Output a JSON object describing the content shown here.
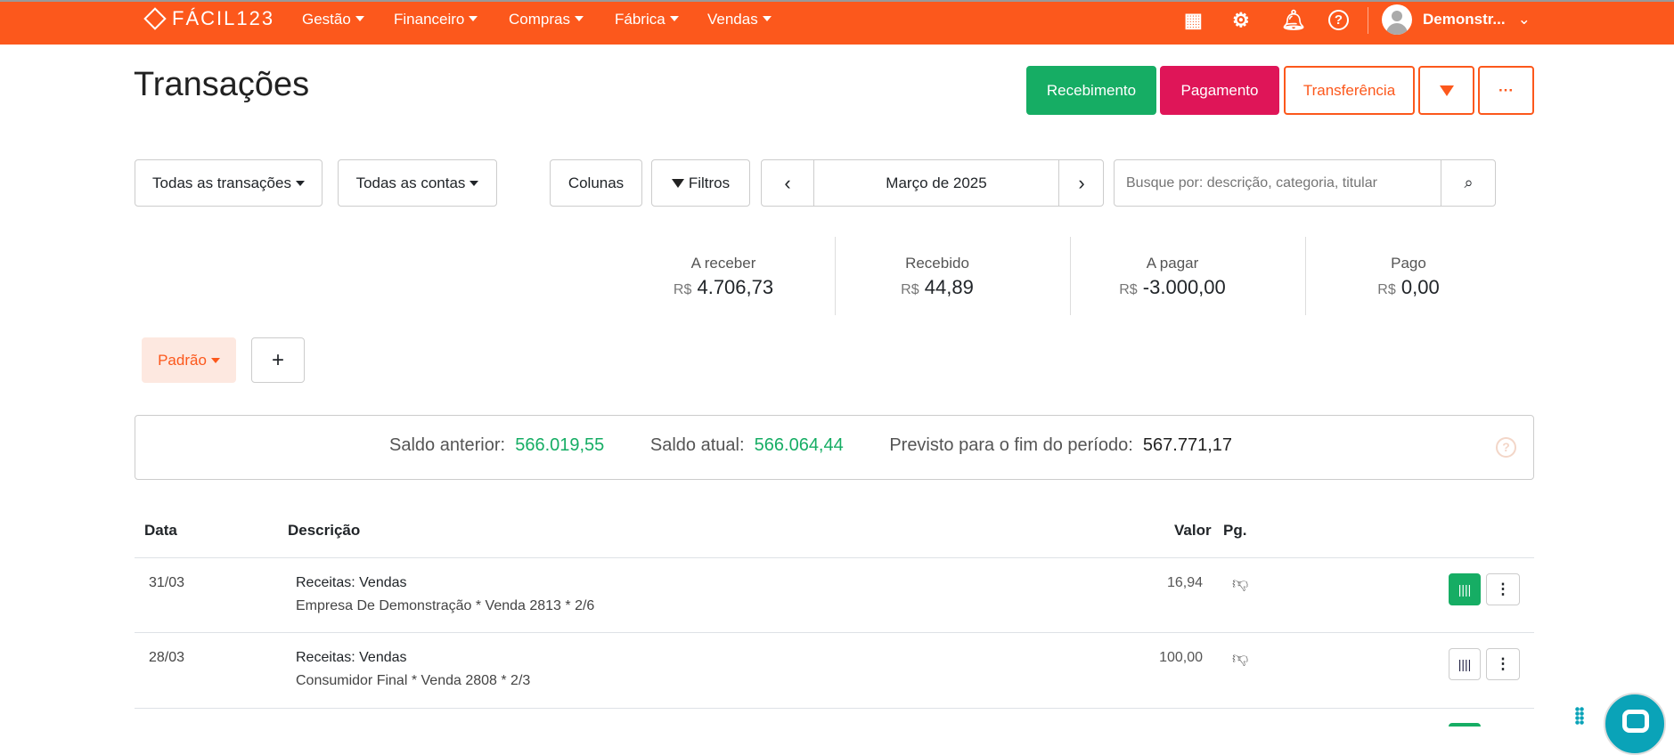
{
  "nav": {
    "brand": "FÁCIL123",
    "menus": [
      "Gestão",
      "Financeiro",
      "Compras",
      "Fábrica",
      "Vendas"
    ],
    "user": "Demonstr...",
    "icons": [
      "apps-grid-icon",
      "gear-icon",
      "bell-icon",
      "help-icon"
    ]
  },
  "page": {
    "title": "Transações"
  },
  "actions": {
    "receive": "Recebimento",
    "pay": "Pagamento",
    "transfer": "Transferência",
    "more": "···"
  },
  "filters": {
    "transactions": "Todas as transações",
    "accounts": "Todas as contas",
    "columns": "Colunas",
    "filters": "Filtros",
    "period": "Março de 2025",
    "search_placeholder": "Busque por: descrição, categoria, titular"
  },
  "summary": [
    {
      "label": "A receber",
      "currency": "R$",
      "value": "4.706,73"
    },
    {
      "label": "Recebido",
      "currency": "R$",
      "value": "44,89"
    },
    {
      "label": "A pagar",
      "currency": "R$",
      "value": "-3.000,00"
    },
    {
      "label": "Pago",
      "currency": "R$",
      "value": "0,00"
    }
  ],
  "view": {
    "name": "Padrão",
    "add": "+"
  },
  "balance": {
    "prev_label": "Saldo anterior:",
    "prev": "566.019,55",
    "curr_label": "Saldo atual:",
    "curr": "566.064,44",
    "forecast_label": "Previsto para o fim do período:",
    "forecast": "567.771,17"
  },
  "table": {
    "headers": [
      "Data",
      "Descrição",
      "Valor",
      "Pg."
    ],
    "rows": [
      {
        "date": "31/03",
        "category": "Receitas: Vendas",
        "desc": "Empresa De Demonstração * Venda 2813 * 2/6",
        "value": "16,94",
        "boleto_active": true
      },
      {
        "date": "28/03",
        "category": "Receitas: Vendas",
        "desc": "Consumidor Final * Venda 2808 * 2/3",
        "value": "100,00",
        "boleto_active": false
      }
    ]
  },
  "colors": {
    "brand": "#fc581c",
    "green": "#16ad64",
    "pink": "#df1558",
    "positive": "#16ad64"
  }
}
